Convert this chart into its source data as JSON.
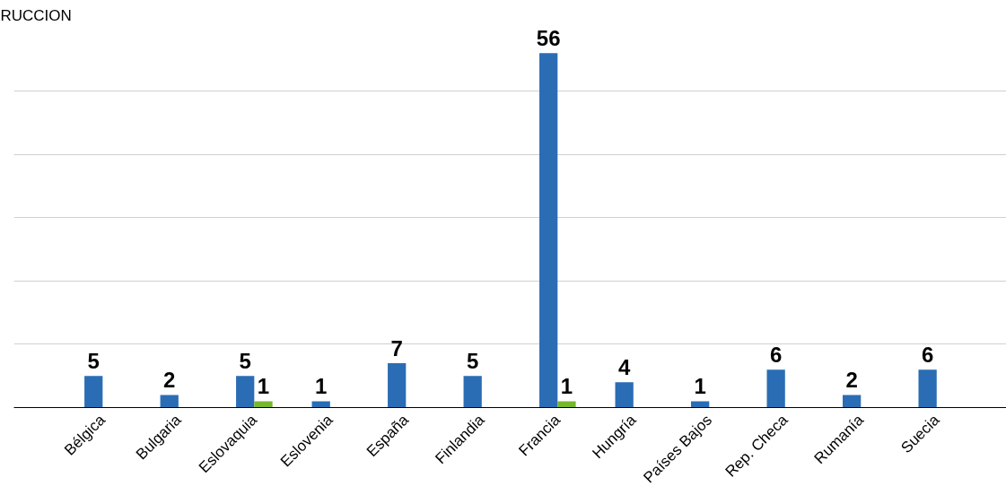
{
  "chart_data": {
    "type": "bar",
    "title": "RUCCION",
    "categories": [
      "Bélgica",
      "Bulgaria",
      "Eslovaquia",
      "Eslovenia",
      "España",
      "Finlandia",
      "Francia",
      "Hungría",
      "Países Bajos",
      "Rep. Checa",
      "Rumanía",
      "Suecia"
    ],
    "series": [
      {
        "color": "#2a6db5",
        "values": [
          5,
          2,
          5,
          1,
          7,
          5,
          56,
          4,
          1,
          6,
          2,
          6
        ]
      },
      {
        "color": "#76b82a",
        "values": [
          null,
          null,
          1,
          null,
          null,
          null,
          1,
          null,
          null,
          null,
          null,
          null
        ]
      }
    ],
    "tick_labels": "x",
    "grid": "y",
    "data_labels": true
  }
}
